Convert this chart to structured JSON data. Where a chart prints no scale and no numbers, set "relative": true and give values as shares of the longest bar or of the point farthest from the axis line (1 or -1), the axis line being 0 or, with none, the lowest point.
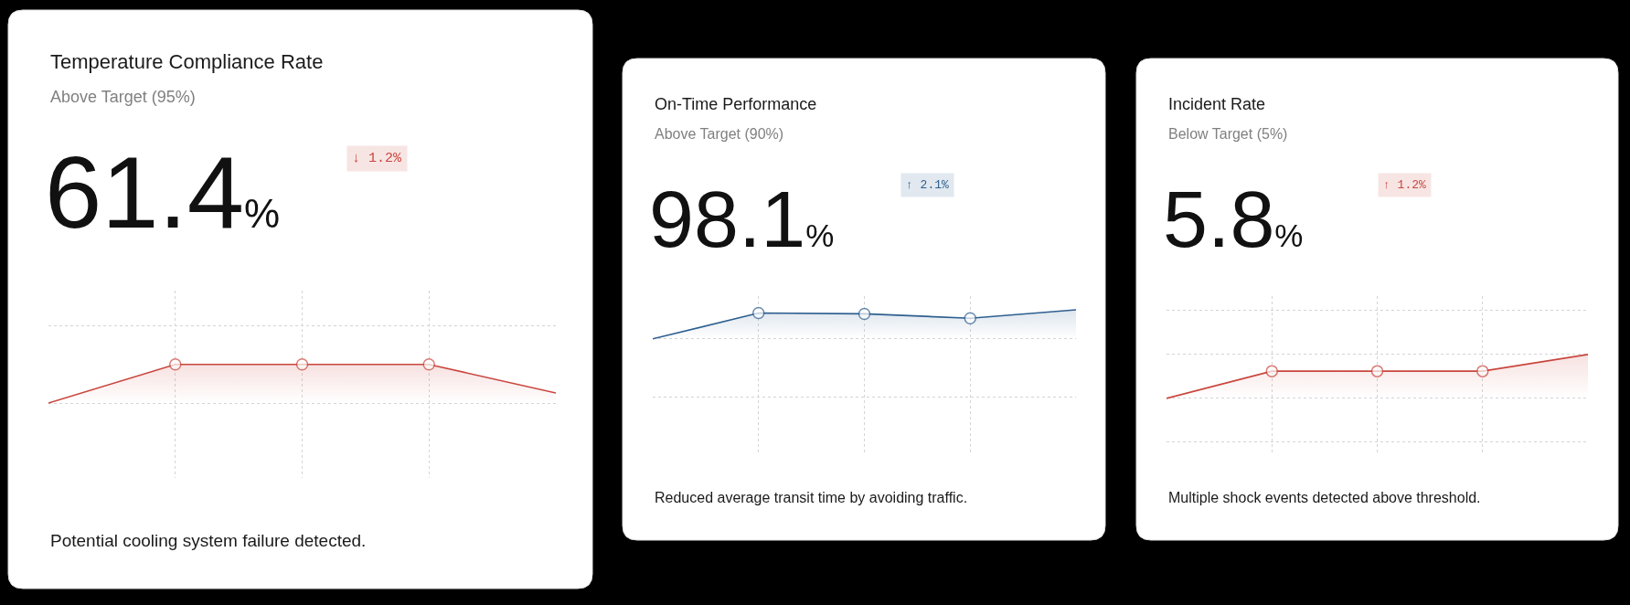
{
  "chart_data": [
    {
      "type": "area",
      "title": "Temperature Compliance Rate",
      "subtitle": "Above Target (95%)",
      "relative": true,
      "grid": true,
      "marker": "circle",
      "categories": [
        null,
        null,
        null,
        null,
        null
      ],
      "series": [
        {
          "color": "#c9463d",
          "values": [
            0,
            1,
            1,
            1,
            0.26
          ]
        }
      ],
      "annotations": [
        "61.4%",
        "↓ 1.2%",
        "Potential cooling system failure detected."
      ]
    },
    {
      "type": "area",
      "title": "On-Time Performance",
      "subtitle": "Above Target (90%)",
      "relative": true,
      "grid": true,
      "marker": "circle",
      "categories": [
        null,
        null,
        null,
        null,
        null
      ],
      "series": [
        {
          "color": "#2e5f8f",
          "values": [
            0,
            0.89,
            0.86,
            0.71,
            1
          ]
        }
      ],
      "annotations": [
        "98.1%",
        "↑ 2.1%",
        "Reduced average transit time by avoiding traffic."
      ]
    },
    {
      "type": "area",
      "title": "Incident Rate",
      "subtitle": "Below Target (5%)",
      "relative": true,
      "grid": true,
      "marker": "circle",
      "categories": [
        null,
        null,
        null,
        null,
        null
      ],
      "series": [
        {
          "color": "#c9463d",
          "values": [
            0,
            0.62,
            0.62,
            0.62,
            1
          ]
        }
      ],
      "annotations": [
        "5.8%",
        "↑ 1.2%",
        "Multiple shock events detected above threshold."
      ]
    }
  ]
}
